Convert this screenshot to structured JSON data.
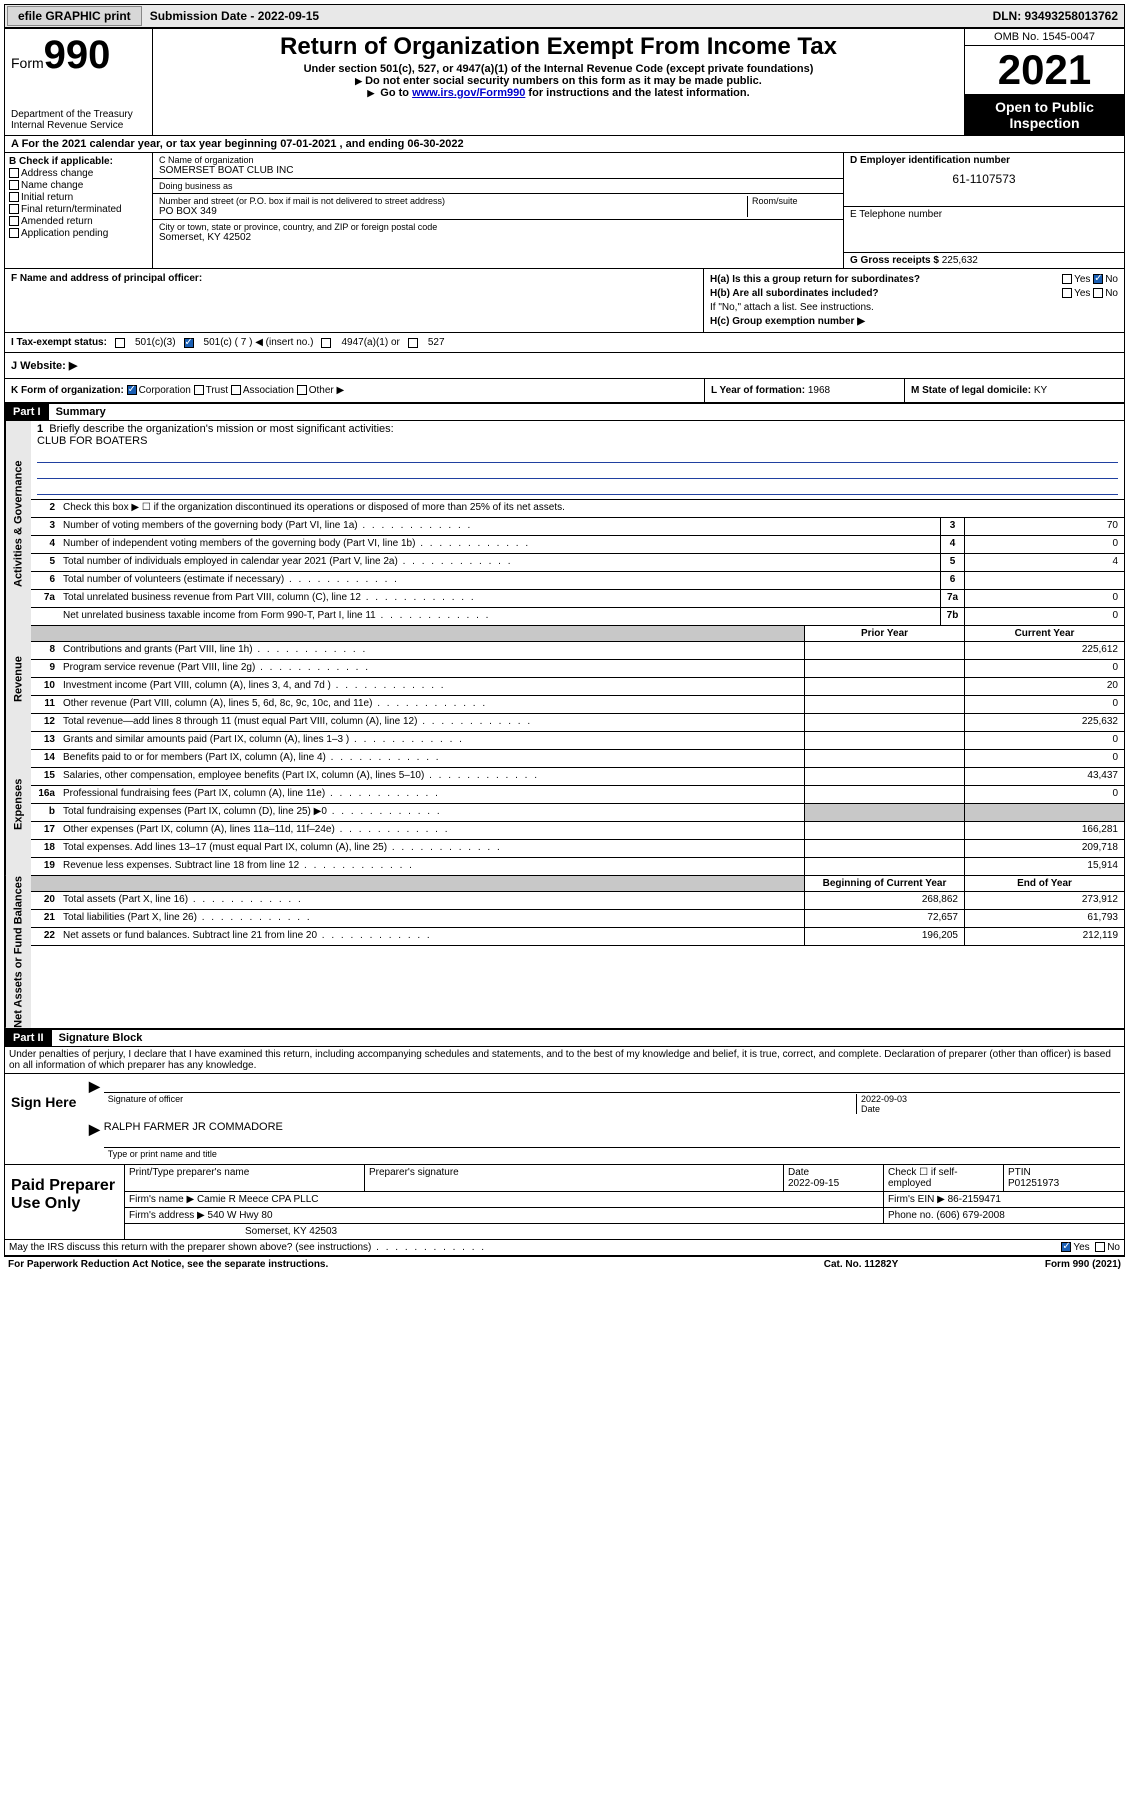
{
  "topbar": {
    "efile": "efile GRAPHIC print",
    "submission": "Submission Date - 2022-09-15",
    "dln": "DLN: 93493258013762"
  },
  "header": {
    "form_prefix": "Form",
    "form_number": "990",
    "dept": "Department of the Treasury\nInternal Revenue Service",
    "title": "Return of Organization Exempt From Income Tax",
    "sub1": "Under section 501(c), 527, or 4947(a)(1) of the Internal Revenue Code (except private foundations)",
    "sub2": "Do not enter social security numbers on this form as it may be made public.",
    "sub3_pre": "Go to ",
    "sub3_link": "www.irs.gov/Form990",
    "sub3_post": " for instructions and the latest information.",
    "omb": "OMB No. 1545-0047",
    "year": "2021",
    "open": "Open to Public Inspection"
  },
  "row_a": "A For the 2021 calendar year, or tax year beginning 07-01-2021  , and ending 06-30-2022",
  "col_b": {
    "title": "B Check if applicable:",
    "items": [
      "Address change",
      "Name change",
      "Initial return",
      "Final return/terminated",
      "Amended return",
      "Application pending"
    ]
  },
  "col_c": {
    "name_lab": "C Name of organization",
    "name": "SOMERSET BOAT CLUB INC",
    "dba_lab": "Doing business as",
    "dba": "",
    "addr_lab": "Number and street (or P.O. box if mail is not delivered to street address)",
    "room_lab": "Room/suite",
    "addr": "PO BOX 349",
    "city_lab": "City or town, state or province, country, and ZIP or foreign postal code",
    "city": "Somerset, KY  42502"
  },
  "col_d": {
    "ein_lab": "D Employer identification number",
    "ein": "61-1107573",
    "phone_lab": "E Telephone number",
    "phone": "",
    "gross_lab": "G Gross receipts $",
    "gross": "225,632"
  },
  "row_f": {
    "label": "F Name and address of principal officer:",
    "value": ""
  },
  "row_h": {
    "ha": "H(a)  Is this a group return for subordinates?",
    "ha_yes": "Yes",
    "ha_no": "No",
    "hb": "H(b)  Are all subordinates included?",
    "hb_yes": "Yes",
    "hb_no": "No",
    "hb_note": "If \"No,\" attach a list. See instructions.",
    "hc": "H(c)  Group exemption number ▶"
  },
  "row_i": {
    "label": "I  Tax-exempt status:",
    "opt1": "501(c)(3)",
    "opt2": "501(c) ( 7 ) ◀ (insert no.)",
    "opt3": "4947(a)(1) or",
    "opt4": "527"
  },
  "row_j": {
    "label": "J  Website: ▶",
    "value": ""
  },
  "row_k": {
    "label": "K Form of organization:",
    "opts": [
      "Corporation",
      "Trust",
      "Association",
      "Other ▶"
    ]
  },
  "row_l": {
    "label": "L Year of formation:",
    "value": "1968"
  },
  "row_m": {
    "label": "M State of legal domicile:",
    "value": "KY"
  },
  "part1": {
    "hdr": "Part I",
    "title": "Summary"
  },
  "summary": {
    "q1": "Briefly describe the organization's mission or most significant activities:",
    "mission": "CLUB FOR BOATERS",
    "q2": "Check this box ▶ ☐  if the organization discontinued its operations or disposed of more than 25% of its net assets.",
    "rows_gov": [
      {
        "n": "3",
        "d": "Number of voting members of the governing body (Part VI, line 1a)",
        "box": "3",
        "v": "70"
      },
      {
        "n": "4",
        "d": "Number of independent voting members of the governing body (Part VI, line 1b)",
        "box": "4",
        "v": "0"
      },
      {
        "n": "5",
        "d": "Total number of individuals employed in calendar year 2021 (Part V, line 2a)",
        "box": "5",
        "v": "4"
      },
      {
        "n": "6",
        "d": "Total number of volunteers (estimate if necessary)",
        "box": "6",
        "v": ""
      },
      {
        "n": "7a",
        "d": "Total unrelated business revenue from Part VIII, column (C), line 12",
        "box": "7a",
        "v": "0"
      },
      {
        "n": "",
        "d": "Net unrelated business taxable income from Form 990-T, Part I, line 11",
        "box": "7b",
        "v": "0"
      }
    ],
    "col_hdr1": "Prior Year",
    "col_hdr2": "Current Year",
    "rows_rev": [
      {
        "n": "8",
        "d": "Contributions and grants (Part VIII, line 1h)",
        "p": "",
        "c": "225,612"
      },
      {
        "n": "9",
        "d": "Program service revenue (Part VIII, line 2g)",
        "p": "",
        "c": "0"
      },
      {
        "n": "10",
        "d": "Investment income (Part VIII, column (A), lines 3, 4, and 7d )",
        "p": "",
        "c": "20"
      },
      {
        "n": "11",
        "d": "Other revenue (Part VIII, column (A), lines 5, 6d, 8c, 9c, 10c, and 11e)",
        "p": "",
        "c": "0"
      },
      {
        "n": "12",
        "d": "Total revenue—add lines 8 through 11 (must equal Part VIII, column (A), line 12)",
        "p": "",
        "c": "225,632"
      }
    ],
    "rows_exp": [
      {
        "n": "13",
        "d": "Grants and similar amounts paid (Part IX, column (A), lines 1–3 )",
        "p": "",
        "c": "0"
      },
      {
        "n": "14",
        "d": "Benefits paid to or for members (Part IX, column (A), line 4)",
        "p": "",
        "c": "0"
      },
      {
        "n": "15",
        "d": "Salaries, other compensation, employee benefits (Part IX, column (A), lines 5–10)",
        "p": "",
        "c": "43,437"
      },
      {
        "n": "16a",
        "d": "Professional fundraising fees (Part IX, column (A), line 11e)",
        "p": "",
        "c": "0"
      },
      {
        "n": "b",
        "d": "Total fundraising expenses (Part IX, column (D), line 25) ▶0",
        "p": "shade",
        "c": "shade"
      },
      {
        "n": "17",
        "d": "Other expenses (Part IX, column (A), lines 11a–11d, 11f–24e)",
        "p": "",
        "c": "166,281"
      },
      {
        "n": "18",
        "d": "Total expenses. Add lines 13–17 (must equal Part IX, column (A), line 25)",
        "p": "",
        "c": "209,718"
      },
      {
        "n": "19",
        "d": "Revenue less expenses. Subtract line 18 from line 12",
        "p": "",
        "c": "15,914"
      }
    ],
    "col_hdr3": "Beginning of Current Year",
    "col_hdr4": "End of Year",
    "rows_net": [
      {
        "n": "20",
        "d": "Total assets (Part X, line 16)",
        "p": "268,862",
        "c": "273,912"
      },
      {
        "n": "21",
        "d": "Total liabilities (Part X, line 26)",
        "p": "72,657",
        "c": "61,793"
      },
      {
        "n": "22",
        "d": "Net assets or fund balances. Subtract line 21 from line 20",
        "p": "196,205",
        "c": "212,119"
      }
    ]
  },
  "vtabs": {
    "gov": "Activities & Governance",
    "rev": "Revenue",
    "exp": "Expenses",
    "net": "Net Assets or Fund Balances"
  },
  "part2": {
    "hdr": "Part II",
    "title": "Signature Block"
  },
  "sig": {
    "decl": "Under penalties of perjury, I declare that I have examined this return, including accompanying schedules and statements, and to the best of my knowledge and belief, it is true, correct, and complete. Declaration of preparer (other than officer) is based on all information of which preparer has any knowledge.",
    "sign_here": "Sign Here",
    "sig_officer": "Signature of officer",
    "date_lab": "Date",
    "date": "2022-09-03",
    "name": "RALPH FARMER JR COMMADORE",
    "name_lab": "Type or print name and title"
  },
  "prep": {
    "title": "Paid Preparer Use Only",
    "h1": "Print/Type preparer's name",
    "h2": "Preparer's signature",
    "h3": "Date",
    "h3v": "2022-09-15",
    "h4": "Check ☐ if self-employed",
    "h5": "PTIN",
    "h5v": "P01251973",
    "firm_lab": "Firm's name   ▶",
    "firm": "Camie R Meece CPA PLLC",
    "ein_lab": "Firm's EIN ▶",
    "ein": "86-2159471",
    "addr_lab": "Firm's address ▶",
    "addr": "540 W Hwy 80",
    "addr2": "Somerset, KY  42503",
    "ph_lab": "Phone no.",
    "ph": "(606) 679-2008"
  },
  "foot": {
    "q": "May the IRS discuss this return with the preparer shown above? (see instructions)",
    "yes": "Yes",
    "no": "No",
    "pra": "For Paperwork Reduction Act Notice, see the separate instructions.",
    "cat": "Cat. No. 11282Y",
    "form": "Form 990 (2021)"
  },
  "colors": {
    "link": "#0000cc",
    "rule": "#2040a0",
    "shade": "#c8c8c8",
    "check": "#1a5fb4"
  }
}
